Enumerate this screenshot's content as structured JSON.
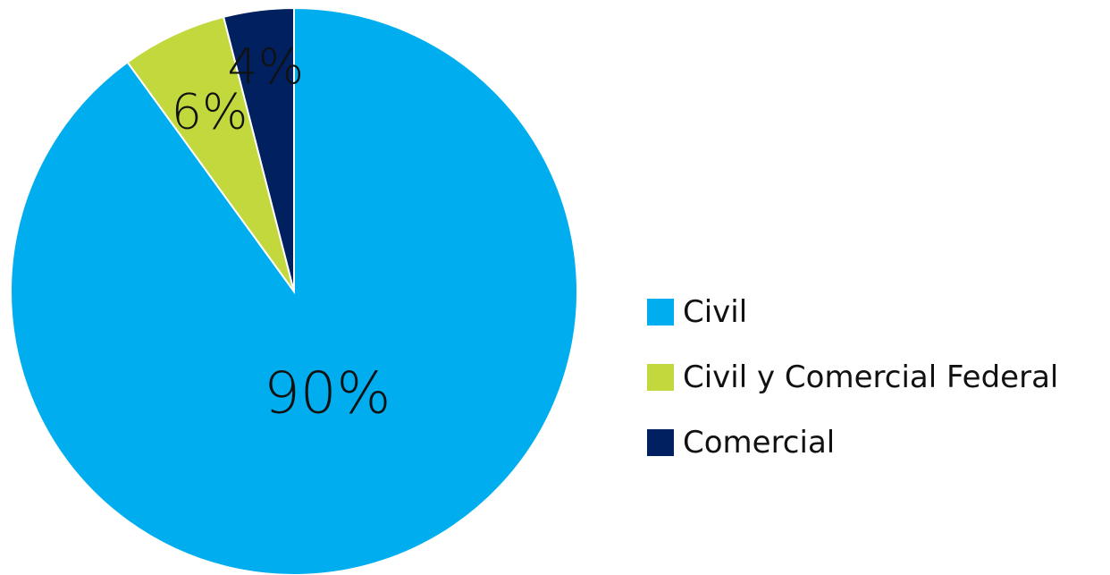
{
  "chart_data": {
    "type": "pie",
    "categories": [
      "Civil",
      "Civil y Comercial Federal",
      "Comercial"
    ],
    "values": [
      90,
      6,
      4
    ],
    "data_labels": [
      "90%",
      "6%",
      "4%"
    ],
    "colors": [
      "#00AEEF",
      "#C3D83D",
      "#002060"
    ],
    "start_angle_deg": 0,
    "direction": "clockwise",
    "legend": {
      "position": "right",
      "items": [
        "Civil",
        "Civil y Comercial Federal",
        "Comercial"
      ]
    },
    "title": ""
  }
}
